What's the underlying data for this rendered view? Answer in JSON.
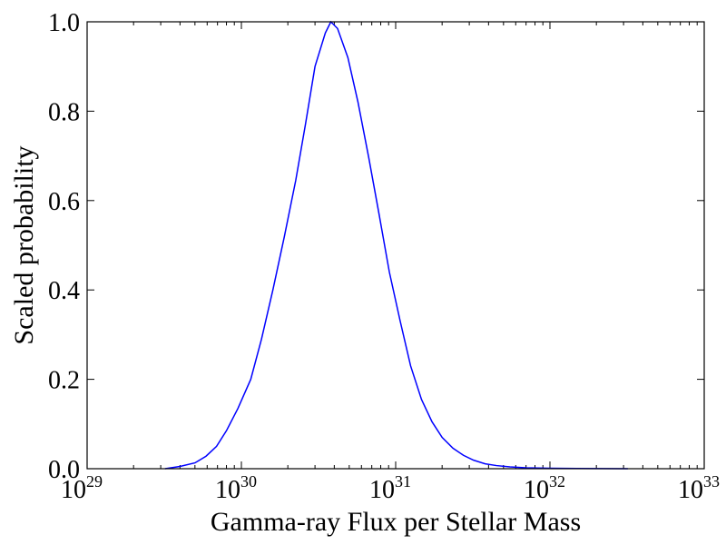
{
  "chart_data": {
    "type": "line",
    "title": "",
    "xlabel": "Gamma-ray Flux per Stellar Mass",
    "ylabel": "Scaled probability",
    "xscale": "log",
    "xlim": [
      1e+29,
      1e+33
    ],
    "ylim": [
      0.0,
      1.0
    ],
    "grid": false,
    "line_color": "#0000ff",
    "x_ticks": [
      {
        "base": "10",
        "exp": "29"
      },
      {
        "base": "10",
        "exp": "30"
      },
      {
        "base": "10",
        "exp": "31"
      },
      {
        "base": "10",
        "exp": "32"
      },
      {
        "base": "10",
        "exp": "33"
      }
    ],
    "y_ticks": [
      "0.0",
      "0.2",
      "0.4",
      "0.6",
      "0.8",
      "1.0"
    ],
    "series": [
      {
        "x": [
          3.2e+29,
          4e+29,
          5e+29,
          5.9e+29,
          6.9e+29,
          8e+29,
          9.5e+29,
          1.15e+30,
          1.35e+30,
          1.6e+30,
          1.9e+30,
          2.25e+30,
          2.6e+30,
          3e+30,
          3.5e+30,
          3.8e+30,
          4.2e+30,
          4.9e+30,
          5.7e+30,
          6.7e+30,
          7.8e+30,
          9.1e+30,
          1.07e+31,
          1.25e+31,
          1.47e+31,
          1.72e+31,
          2e+31,
          2.35e+31,
          2.75e+31,
          3.2e+31,
          3.8e+31,
          4.5e+31,
          5.5e+31,
          7e+31,
          1e+32,
          1.5e+32,
          2.2e+32,
          3.2e+32
        ],
        "y": [
          0.0,
          0.005,
          0.013,
          0.028,
          0.05,
          0.085,
          0.135,
          0.2,
          0.29,
          0.4,
          0.52,
          0.645,
          0.77,
          0.9,
          0.975,
          1.0,
          0.985,
          0.92,
          0.82,
          0.695,
          0.57,
          0.44,
          0.33,
          0.23,
          0.155,
          0.105,
          0.07,
          0.046,
          0.03,
          0.019,
          0.011,
          0.007,
          0.004,
          0.002,
          0.001,
          0.0005,
          0.0002,
          0.0
        ]
      }
    ]
  }
}
